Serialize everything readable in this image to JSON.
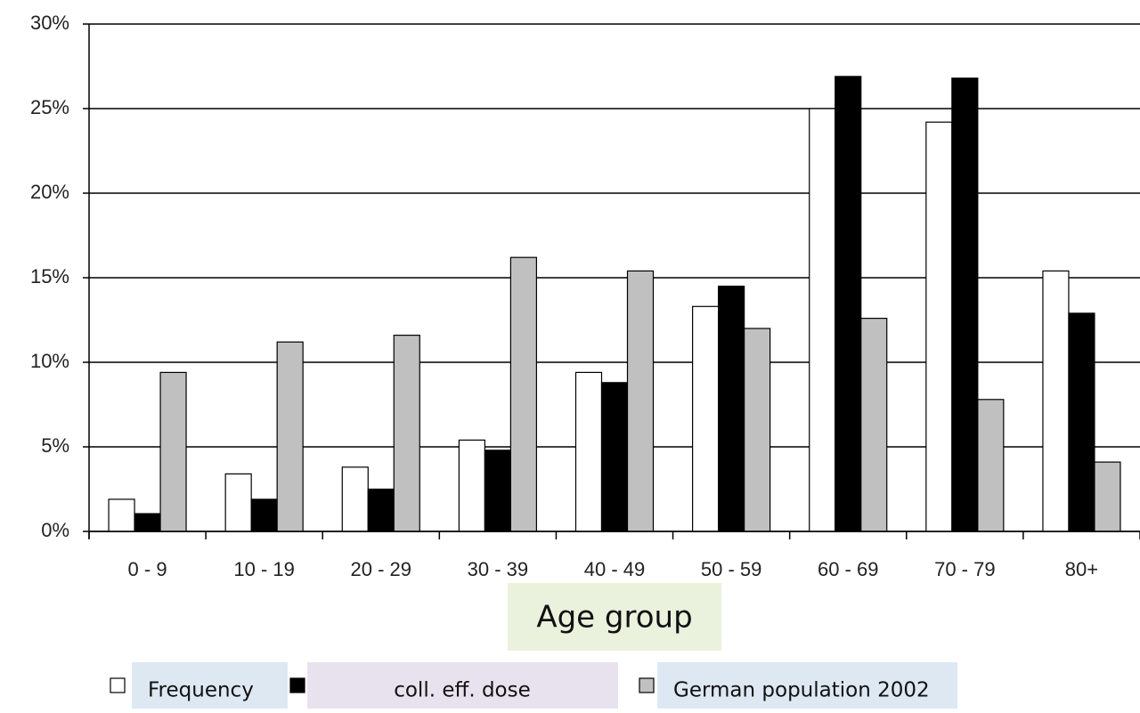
{
  "chart_data": {
    "type": "bar",
    "x_label": "Age group",
    "categories": [
      "0 - 9",
      "10 - 19",
      "20 - 29",
      "30 - 39",
      "40 - 49",
      "50 - 59",
      "60 - 69",
      "70 - 79",
      "80+"
    ],
    "series": [
      {
        "name": "Frequency",
        "color": "#ffffff",
        "values": [
          1.9,
          3.4,
          3.8,
          5.4,
          9.4,
          13.3,
          25.0,
          24.2,
          15.4
        ]
      },
      {
        "name": "coll. eff. dose",
        "color": "#000000",
        "values": [
          1.05,
          1.9,
          2.5,
          4.8,
          8.8,
          14.5,
          26.9,
          26.8,
          12.9
        ]
      },
      {
        "name": "German population 2002",
        "color": "#c0c0c0",
        "values": [
          9.4,
          11.2,
          11.6,
          16.2,
          15.4,
          12.0,
          12.6,
          7.8,
          4.1
        ]
      }
    ],
    "ylim": [
      0,
      30
    ],
    "yticks": [
      {
        "value": 0,
        "label": "0%"
      },
      {
        "value": 5,
        "label": "5%"
      },
      {
        "value": 10,
        "label": "10%"
      },
      {
        "value": 15,
        "label": "15%"
      },
      {
        "value": 20,
        "label": "20%"
      },
      {
        "value": 25,
        "label": "25%"
      },
      {
        "value": 30,
        "label": "30%"
      }
    ],
    "grid": true
  }
}
